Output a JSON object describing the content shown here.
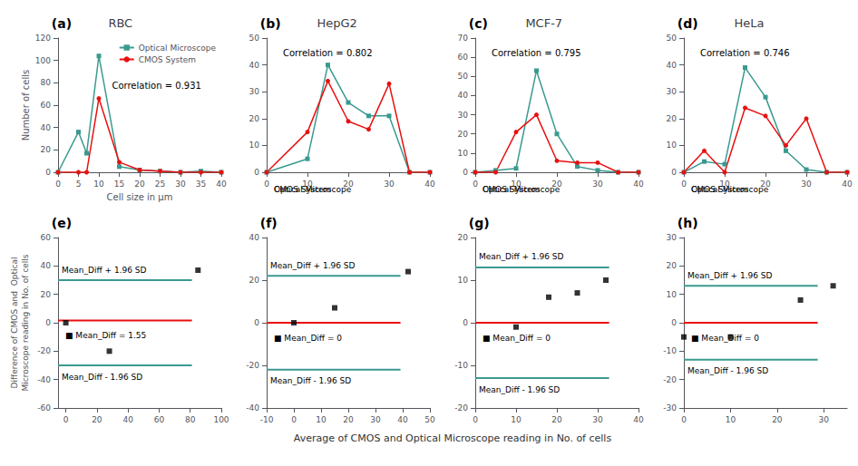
{
  "chart_data": [
    {
      "type": "line",
      "title": "RBC",
      "annotations": [
        "(a)",
        "Correlation = 0.931"
      ],
      "xlabel": "Cell size in μm",
      "ylabel": "Number of cells",
      "xlim": [
        0,
        40
      ],
      "ylim": [
        0,
        120
      ],
      "xticks": [
        0,
        5,
        10,
        15,
        20,
        25,
        30,
        35,
        40
      ],
      "yticks": [
        0,
        20,
        40,
        60,
        80,
        100,
        120
      ],
      "grid": false,
      "legend": "upper right",
      "series": [
        {
          "name": "Optical Microscope",
          "color": "#3a9a8f",
          "marker": "square",
          "x": [
            0,
            5,
            7,
            10,
            15,
            20,
            25,
            30,
            35,
            40
          ],
          "values": [
            0,
            36,
            17,
            104,
            5,
            2,
            1,
            0,
            1,
            0
          ]
        },
        {
          "name": "CMOS System",
          "color": "#e81010",
          "marker": "circle",
          "x": [
            0,
            5,
            7,
            10,
            15,
            20,
            25,
            30,
            35,
            40
          ],
          "values": [
            0,
            0,
            0,
            66,
            9,
            2,
            1,
            0,
            0,
            0
          ]
        }
      ]
    },
    {
      "type": "line",
      "title": "HepG2",
      "annotations": [
        "(b)",
        "Correlation = 0.802"
      ],
      "xlim": [
        0,
        40
      ],
      "ylim": [
        0,
        50
      ],
      "xticks": [
        0,
        10,
        20,
        30,
        40
      ],
      "yticks": [
        0,
        10,
        20,
        30,
        40,
        50
      ],
      "grid": false,
      "series": [
        {
          "name": "Optical Microscope",
          "color": "#3a9a8f",
          "marker": "square",
          "x": [
            0,
            10,
            15,
            20,
            25,
            30,
            35,
            40
          ],
          "values": [
            0,
            5,
            40,
            26,
            21,
            21,
            0,
            0
          ]
        },
        {
          "name": "CMOS System",
          "color": "#e81010",
          "marker": "circle",
          "x": [
            0,
            10,
            15,
            20,
            25,
            30,
            35,
            40
          ],
          "values": [
            0,
            15,
            34,
            19,
            16,
            33,
            0,
            0
          ]
        }
      ]
    },
    {
      "type": "line",
      "title": "MCF-7",
      "annotations": [
        "(c)",
        "Correlation = 0.795"
      ],
      "xlim": [
        0,
        40
      ],
      "ylim": [
        0,
        70
      ],
      "xticks": [
        0,
        10,
        20,
        30,
        40
      ],
      "yticks": [
        0,
        10,
        20,
        30,
        40,
        50,
        60,
        70
      ],
      "grid": false,
      "series": [
        {
          "name": "Optical Microscope",
          "color": "#3a9a8f",
          "marker": "square",
          "x": [
            0,
            5,
            10,
            15,
            20,
            25,
            30,
            35,
            40
          ],
          "values": [
            0,
            1,
            2,
            53,
            20,
            3,
            1,
            0,
            0
          ]
        },
        {
          "name": "CMOS System",
          "color": "#e81010",
          "marker": "circle",
          "x": [
            0,
            5,
            10,
            15,
            20,
            25,
            30,
            35,
            40
          ],
          "values": [
            0,
            0,
            21,
            30,
            6,
            5,
            5,
            0,
            0
          ]
        }
      ]
    },
    {
      "type": "line",
      "title": "HeLa",
      "annotations": [
        "(d)",
        "Correlation = 0.746"
      ],
      "xlim": [
        0,
        40
      ],
      "ylim": [
        0,
        50
      ],
      "xticks": [
        0,
        10,
        20,
        30,
        40
      ],
      "yticks": [
        0,
        10,
        20,
        30,
        40,
        50
      ],
      "grid": false,
      "series": [
        {
          "name": "Optical Microscope",
          "color": "#3a9a8f",
          "marker": "square",
          "x": [
            0,
            5,
            10,
            15,
            20,
            25,
            30,
            35,
            40
          ],
          "values": [
            0,
            4,
            3,
            39,
            28,
            8,
            1,
            0,
            0
          ]
        },
        {
          "name": "CMOS System",
          "color": "#e81010",
          "marker": "circle",
          "x": [
            0,
            5,
            10,
            15,
            20,
            25,
            30,
            35,
            40
          ],
          "values": [
            0,
            8,
            0,
            24,
            21,
            10,
            20,
            0,
            0
          ]
        }
      ]
    },
    {
      "type": "scatter",
      "annotations": [
        "(e)"
      ],
      "xlabel": "Average of CMOS and Optical Microscope reading in No. of cells",
      "ylabel": "Difference of CMOS and  Optical\nMicroscope reading in No. of cells",
      "xlim": [
        -5,
        100
      ],
      "ylim": [
        -60,
        60
      ],
      "xticks": [
        0,
        20,
        40,
        60,
        80,
        100
      ],
      "yticks": [
        -60,
        -40,
        -20,
        0,
        20,
        40,
        60
      ],
      "grid": false,
      "series": [
        {
          "name": "■ Mean_Diff = 1.55",
          "type": "line",
          "color": "#e81010",
          "x": [
            -5,
            81.1
          ],
          "values": [
            1.55,
            1.55
          ]
        },
        {
          "name": "Mean_Diff + 1.96 SD",
          "type": "line",
          "color": "#3a9a8f",
          "x": [
            -5,
            81.1
          ],
          "values": [
            30,
            30
          ]
        },
        {
          "name": "Mean_Diff - 1.96 SD",
          "type": "line",
          "color": "#3a9a8f",
          "x": [
            -5,
            81.1
          ],
          "values": [
            -30,
            -30
          ]
        },
        {
          "type": "scatter",
          "color": "#000000",
          "marker": "square",
          "x": [
            0,
            28,
            85
          ],
          "values": [
            0,
            -20,
            37
          ]
        }
      ]
    },
    {
      "type": "scatter",
      "annotations": [
        "(f)"
      ],
      "xlim": [
        -10,
        50
      ],
      "ylim": [
        -40,
        40
      ],
      "xticks": [
        -10,
        0,
        10,
        20,
        30,
        40,
        50
      ],
      "yticks": [
        -40,
        -20,
        0,
        20,
        40
      ],
      "grid": false,
      "series": [
        {
          "name": "■ Mean_Diff = 0",
          "type": "line",
          "color": "#e81010",
          "x": [
            -10,
            39.2
          ],
          "values": [
            0,
            0
          ]
        },
        {
          "name": "Mean_Diff + 1.96 SD",
          "type": "line",
          "color": "#3a9a8f",
          "x": [
            -10,
            39.2
          ],
          "values": [
            22,
            22
          ]
        },
        {
          "name": "Mean_Diff - 1.96 SD",
          "type": "line",
          "color": "#3a9a8f",
          "x": [
            -10,
            39.2
          ],
          "values": [
            -22,
            -22
          ]
        },
        {
          "type": "scatter",
          "color": "#000000",
          "marker": "square",
          "x": [
            0,
            15,
            42
          ],
          "values": [
            0,
            7,
            24
          ]
        }
      ]
    },
    {
      "type": "scatter",
      "annotations": [
        "(g)"
      ],
      "xlim": [
        0,
        40
      ],
      "ylim": [
        -20,
        20
      ],
      "xticks": [
        0,
        10,
        20,
        30,
        40
      ],
      "yticks": [
        -20,
        -10,
        0,
        10,
        20
      ],
      "grid": false,
      "series": [
        {
          "name": "■ Mean_Diff = 0",
          "type": "line",
          "color": "#e81010",
          "x": [
            0,
            32.8
          ],
          "values": [
            0,
            0
          ]
        },
        {
          "name": "Mean_Diff + 1.96 SD",
          "type": "line",
          "color": "#3a9a8f",
          "x": [
            0,
            32.8
          ],
          "values": [
            13,
            13
          ]
        },
        {
          "name": "Mean_Diff - 1.96 SD",
          "type": "line",
          "color": "#3a9a8f",
          "x": [
            0,
            32.8
          ],
          "values": [
            -13,
            -13
          ]
        },
        {
          "type": "scatter",
          "color": "#000000",
          "marker": "square",
          "x": [
            10,
            18,
            25,
            32
          ],
          "values": [
            -1,
            6,
            7,
            10
          ]
        }
      ]
    },
    {
      "type": "scatter",
      "annotations": [
        "(h)"
      ],
      "xlim": [
        0,
        35
      ],
      "ylim": [
        -30,
        30
      ],
      "xticks": [
        0,
        10,
        20,
        30
      ],
      "yticks": [
        -30,
        -20,
        -10,
        0,
        10,
        20,
        30
      ],
      "grid": false,
      "series": [
        {
          "name": "■ Mean_Diff = 0",
          "type": "line",
          "color": "#e81010",
          "x": [
            0,
            28.7
          ],
          "values": [
            0,
            0
          ]
        },
        {
          "name": "Mean_Diff + 1.96 SD",
          "type": "line",
          "color": "#3a9a8f",
          "x": [
            0,
            28.7
          ],
          "values": [
            13,
            13
          ]
        },
        {
          "name": "Mean_Diff - 1.96 SD",
          "type": "line",
          "color": "#3a9a8f",
          "x": [
            0,
            28.7
          ],
          "values": [
            -13,
            -13
          ]
        },
        {
          "type": "scatter",
          "color": "#000000",
          "marker": "square",
          "x": [
            0,
            10,
            25,
            32
          ],
          "values": [
            -5,
            -5,
            8,
            13
          ]
        }
      ]
    }
  ]
}
